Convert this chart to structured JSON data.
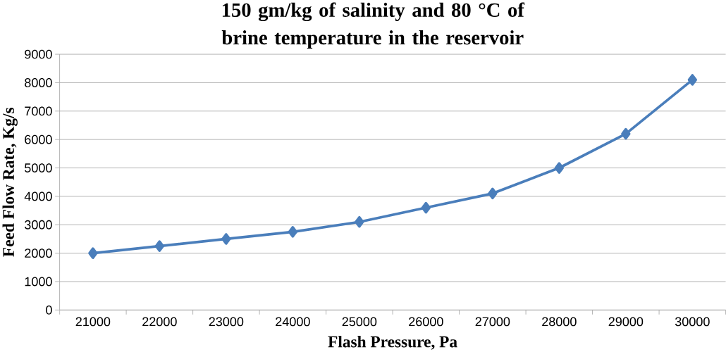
{
  "chart_data": {
    "type": "line",
    "title": "150 gm/kg of salinity and 80 °C of brine temperature in the reservoir",
    "xlabel": "Flash Pressure, Pa",
    "ylabel": "Feed Flow Rate, Kg/s",
    "categories": [
      "21000",
      "22000",
      "23000",
      "24000",
      "25000",
      "26000",
      "27000",
      "28000",
      "29000",
      "30000"
    ],
    "series": [
      {
        "color": "#4a7ebb",
        "values": [
          2000,
          2250,
          2500,
          2750,
          3100,
          3600,
          4100,
          5000,
          6200,
          8100
        ]
      }
    ],
    "ylim": [
      0,
      9000
    ],
    "yticks": [
      0,
      1000,
      2000,
      3000,
      4000,
      5000,
      6000,
      7000,
      8000,
      9000
    ],
    "grid": "y",
    "marker": "diamond",
    "line_style": "solid"
  }
}
